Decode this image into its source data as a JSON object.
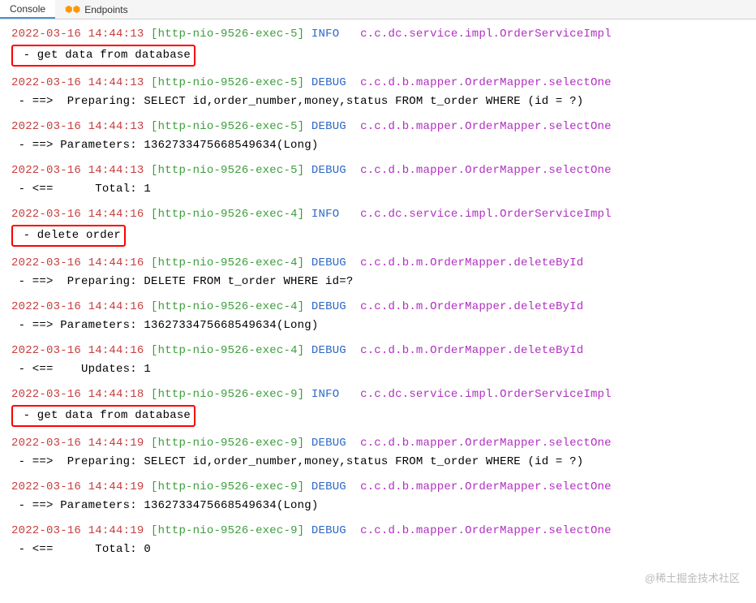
{
  "tabs": {
    "console": "Console",
    "endpoints": "Endpoints"
  },
  "colors": {
    "timestamp": "#c73e3e",
    "thread": "#3c9e3c",
    "level": "#2c68c7",
    "class": "#b030c0",
    "background": "#ffffff",
    "highlight_border": "#ff0000"
  },
  "logs": [
    {
      "ts": "2022-03-16 14:44:13",
      "thread": "[http-nio-9526-exec-5]",
      "level": "INFO ",
      "cls": "c.c.dc.service.impl.OrderServiceImpl",
      "cont": " - get data from database",
      "boxed": true
    },
    {
      "ts": "2022-03-16 14:44:13",
      "thread": "[http-nio-9526-exec-5]",
      "level": "DEBUG",
      "cls": "c.c.d.b.mapper.OrderMapper.selectOne",
      "cont": " - ==>  Preparing: SELECT id,order_number,money,status FROM t_order WHERE (id = ?)",
      "boxed": false
    },
    {
      "ts": "2022-03-16 14:44:13",
      "thread": "[http-nio-9526-exec-5]",
      "level": "DEBUG",
      "cls": "c.c.d.b.mapper.OrderMapper.selectOne",
      "cont": " - ==> Parameters: 1362733475668549634(Long)",
      "boxed": false
    },
    {
      "ts": "2022-03-16 14:44:13",
      "thread": "[http-nio-9526-exec-5]",
      "level": "DEBUG",
      "cls": "c.c.d.b.mapper.OrderMapper.selectOne",
      "cont": " - <==      Total: 1",
      "boxed": false
    },
    {
      "ts": "2022-03-16 14:44:16",
      "thread": "[http-nio-9526-exec-4]",
      "level": "INFO ",
      "cls": "c.c.dc.service.impl.OrderServiceImpl",
      "cont": " - delete order",
      "boxed": true
    },
    {
      "ts": "2022-03-16 14:44:16",
      "thread": "[http-nio-9526-exec-4]",
      "level": "DEBUG",
      "cls": "c.c.d.b.m.OrderMapper.deleteById",
      "cont": " - ==>  Preparing: DELETE FROM t_order WHERE id=?",
      "boxed": false
    },
    {
      "ts": "2022-03-16 14:44:16",
      "thread": "[http-nio-9526-exec-4]",
      "level": "DEBUG",
      "cls": "c.c.d.b.m.OrderMapper.deleteById",
      "cont": " - ==> Parameters: 1362733475668549634(Long)",
      "boxed": false
    },
    {
      "ts": "2022-03-16 14:44:16",
      "thread": "[http-nio-9526-exec-4]",
      "level": "DEBUG",
      "cls": "c.c.d.b.m.OrderMapper.deleteById",
      "cont": " - <==    Updates: 1",
      "boxed": false
    },
    {
      "ts": "2022-03-16 14:44:18",
      "thread": "[http-nio-9526-exec-9]",
      "level": "INFO ",
      "cls": "c.c.dc.service.impl.OrderServiceImpl",
      "cont": " - get data from database",
      "boxed": true
    },
    {
      "ts": "2022-03-16 14:44:19",
      "thread": "[http-nio-9526-exec-9]",
      "level": "DEBUG",
      "cls": "c.c.d.b.mapper.OrderMapper.selectOne",
      "cont": " - ==>  Preparing: SELECT id,order_number,money,status FROM t_order WHERE (id = ?)",
      "boxed": false
    },
    {
      "ts": "2022-03-16 14:44:19",
      "thread": "[http-nio-9526-exec-9]",
      "level": "DEBUG",
      "cls": "c.c.d.b.mapper.OrderMapper.selectOne",
      "cont": " - ==> Parameters: 1362733475668549634(Long)",
      "boxed": false
    },
    {
      "ts": "2022-03-16 14:44:19",
      "thread": "[http-nio-9526-exec-9]",
      "level": "DEBUG",
      "cls": "c.c.d.b.mapper.OrderMapper.selectOne",
      "cont": " - <==      Total: 0",
      "boxed": false
    }
  ],
  "watermark": "@稀土掘金技术社区"
}
